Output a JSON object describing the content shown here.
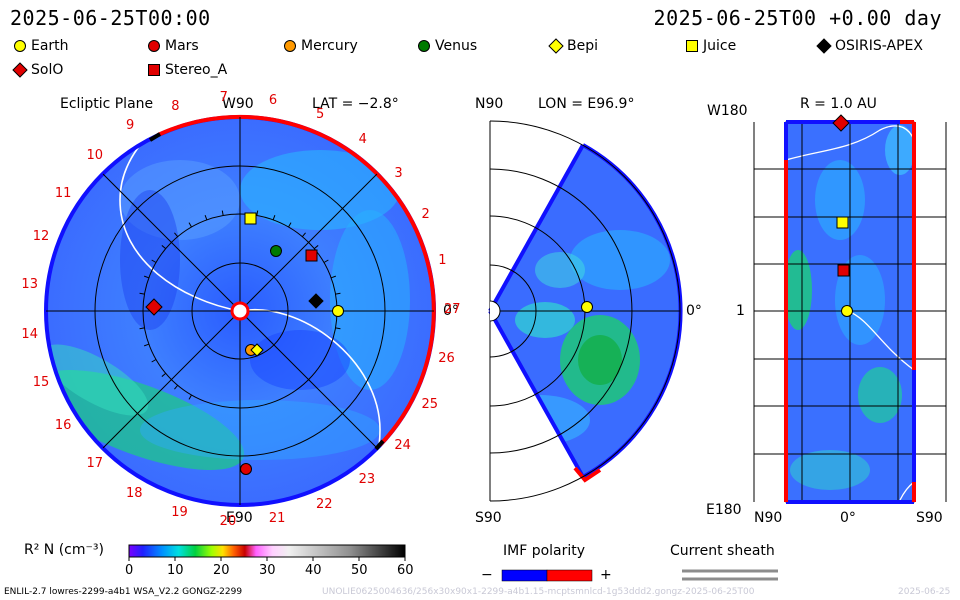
{
  "header": {
    "time_left": "2025-06-25T00:00",
    "time_right": "2025-06-25T00 +0.00 day"
  },
  "legend": [
    {
      "name": "Earth",
      "shape": "circle",
      "color": "#ffff00"
    },
    {
      "name": "Mars",
      "shape": "circle",
      "color": "#e00000"
    },
    {
      "name": "Mercury",
      "shape": "circle",
      "color": "#ff9900"
    },
    {
      "name": "Venus",
      "shape": "circle",
      "color": "#007a00"
    },
    {
      "name": "Bepi",
      "shape": "diamond",
      "color": "#ffff00"
    },
    {
      "name": "Juice",
      "shape": "square",
      "color": "#ffff00"
    },
    {
      "name": "OSIRIS-APEX",
      "shape": "diamond",
      "color": "#000000"
    },
    {
      "name": "SolO",
      "shape": "diamond",
      "color": "#e00000"
    },
    {
      "name": "Stereo_A",
      "shape": "square",
      "color": "#e00000"
    }
  ],
  "ecliptic": {
    "title": "Ecliptic Plane",
    "top_label": "W90",
    "lat": "LAT = −2.8°",
    "right_label": "0°",
    "bottom_label": "E90",
    "carrington_numbers": [
      "1",
      "2",
      "3",
      "4",
      "5",
      "6",
      "7",
      "8",
      "9",
      "10",
      "11",
      "12",
      "13",
      "14",
      "15",
      "16",
      "17",
      "18",
      "19",
      "20",
      "21",
      "22",
      "23",
      "24",
      "25",
      "26",
      "27"
    ]
  },
  "meridional": {
    "top_label": "N90",
    "lon": "LON = E96.9°",
    "right_label": "0°",
    "bottom_label": "S90"
  },
  "radial": {
    "title": "R = 1.0 AU",
    "top_left": "W180",
    "mid_left": "1",
    "bottom_left": "E180",
    "x_labels": [
      "N90",
      "0°",
      "S90"
    ]
  },
  "colorbar": {
    "label": "R² N (cm⁻³)",
    "ticks": [
      "0",
      "10",
      "20",
      "30",
      "40",
      "50",
      "60"
    ],
    "range": [
      0,
      60
    ]
  },
  "imf": {
    "label": "IMF polarity",
    "minus": "−",
    "plus": "+",
    "neg_color": "#0000ff",
    "pos_color": "#ff0000"
  },
  "sheath": {
    "label": "Current sheath"
  },
  "footer": {
    "left": "ENLIL-2.7 lowres-2299-a4b1 WSA_V2.2 GONGZ-2299",
    "right": "UNOLIE0625004636/256x30x90x1-2299-a4b1.15-mcptsmnlcd-1g53ddd2.gongz-2025-06-25T00",
    "right2": "2025-06-25"
  },
  "chart_data": [
    {
      "type": "heatmap",
      "title": "Ecliptic Plane",
      "quantity": "R² N (cm⁻³)",
      "range": [
        0,
        60
      ],
      "bodies": [
        "Earth",
        "Mars",
        "Mercury",
        "Venus",
        "Bepi",
        "Juice",
        "OSIRIS-APEX",
        "SolO",
        "Stereo_A"
      ]
    },
    {
      "type": "heatmap",
      "title": "LON = E96.9°",
      "bodies": [
        "Earth"
      ]
    },
    {
      "type": "heatmap",
      "title": "R = 1.0 AU",
      "bodies": [
        "Earth",
        "Stereo_A",
        "Juice",
        "SolO"
      ]
    }
  ]
}
